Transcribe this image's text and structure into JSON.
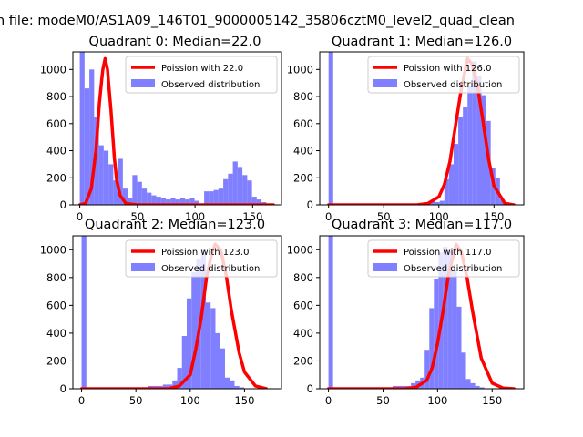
{
  "figure": {
    "suptitle": "n file: modeM0/AS1A09_146T01_9000005142_35806cztM0_level2_quad_clean"
  },
  "colors": {
    "poisson_line": "#ff0000",
    "histogram": "#7f7fff"
  },
  "chart_data": [
    {
      "type": "bar",
      "title": "Quadrant 0: Median=22.0",
      "median": 22.0,
      "xlim": [
        -6,
        175
      ],
      "ylim": [
        0,
        1130
      ],
      "xticks": [
        0,
        50,
        100,
        150
      ],
      "yticks": [
        0,
        200,
        400,
        600,
        800,
        1000
      ],
      "legend": {
        "line_label": "Poission with 22.0",
        "hist_label": "Observed distribution",
        "location": "upper-right"
      },
      "hist_bin_width": 4.15,
      "hist_start": 0,
      "hist_values": [
        1130,
        860,
        1000,
        650,
        440,
        400,
        300,
        180,
        340,
        120,
        50,
        220,
        170,
        120,
        90,
        70,
        60,
        50,
        40,
        50,
        40,
        50,
        40,
        50,
        30,
        10,
        100,
        100,
        110,
        120,
        190,
        230,
        320,
        280,
        220,
        180,
        60,
        40,
        20,
        10,
        0
      ],
      "poisson_x": [
        0,
        5,
        10,
        14,
        17,
        19,
        20,
        22,
        24,
        25,
        27,
        30,
        32,
        35,
        40,
        50,
        60,
        80,
        100,
        120,
        140,
        160,
        168
      ],
      "poisson_y": [
        0,
        10,
        120,
        400,
        750,
        920,
        1000,
        1080,
        1000,
        900,
        700,
        350,
        180,
        70,
        10,
        0,
        0,
        0,
        0,
        0,
        0,
        0,
        0
      ]
    },
    {
      "type": "bar",
      "title": "Quadrant 1: Median=126.0",
      "median": 126.0,
      "xlim": [
        -8,
        177
      ],
      "ylim": [
        0,
        1130
      ],
      "xticks": [
        0,
        50,
        100,
        150
      ],
      "yticks": [
        0,
        200,
        400,
        600,
        800,
        1000
      ],
      "legend": {
        "line_label": "Poission with 126.0",
        "hist_label": "Observed distribution",
        "location": "upper-right"
      },
      "hist_bin_width": 4.2,
      "hist_start": 0,
      "hist_values": [
        1130,
        0,
        0,
        0,
        0,
        0,
        0,
        0,
        0,
        0,
        0,
        0,
        0,
        0,
        0,
        0,
        0,
        0,
        0,
        0,
        10,
        20,
        30,
        20,
        30,
        190,
        300,
        450,
        650,
        720,
        880,
        1060,
        950,
        810,
        620,
        270,
        200,
        40,
        20,
        10,
        0
      ],
      "poisson_x": [
        0,
        80,
        90,
        100,
        105,
        110,
        115,
        120,
        126,
        130,
        135,
        140,
        145,
        150,
        160,
        168
      ],
      "poisson_y": [
        0,
        0,
        10,
        60,
        150,
        320,
        580,
        840,
        1080,
        1040,
        880,
        620,
        340,
        140,
        10,
        0
      ]
    },
    {
      "type": "bar",
      "title": "Quadrant 2: Median=123.0",
      "median": 123.0,
      "xlim": [
        -8,
        184
      ],
      "ylim": [
        0,
        1100
      ],
      "xticks": [
        0,
        50,
        100,
        150
      ],
      "yticks": [
        0,
        200,
        400,
        600,
        800,
        1000
      ],
      "legend": {
        "line_label": "Poission with 123.0",
        "hist_label": "Observed distribution",
        "location": "upper-right"
      },
      "hist_bin_width": 4.4,
      "hist_start": 0,
      "hist_values": [
        1100,
        0,
        0,
        0,
        0,
        0,
        0,
        0,
        0,
        0,
        0,
        0,
        0,
        0,
        20,
        20,
        20,
        30,
        30,
        60,
        150,
        380,
        650,
        840,
        930,
        1000,
        620,
        580,
        400,
        290,
        80,
        60,
        20,
        10,
        0
      ],
      "poisson_x": [
        0,
        80,
        90,
        100,
        105,
        110,
        115,
        120,
        123,
        128,
        133,
        138,
        145,
        150,
        160,
        170
      ],
      "poisson_y": [
        0,
        0,
        20,
        100,
        280,
        500,
        800,
        980,
        1040,
        1000,
        820,
        560,
        260,
        120,
        20,
        0
      ]
    },
    {
      "type": "bar",
      "title": "Quadrant 3: Median=117.0",
      "median": 117.0,
      "xlim": [
        -8,
        179
      ],
      "ylim": [
        0,
        1100
      ],
      "xticks": [
        0,
        50,
        100,
        150
      ],
      "yticks": [
        0,
        200,
        400,
        600,
        800,
        1000
      ],
      "legend": {
        "line_label": "Poission with 117.0",
        "hist_label": "Observed distribution",
        "location": "upper-right"
      },
      "hist_bin_width": 4.2,
      "hist_start": 0,
      "hist_values": [
        1100,
        0,
        0,
        0,
        0,
        0,
        0,
        0,
        0,
        0,
        0,
        0,
        0,
        0,
        20,
        20,
        20,
        20,
        40,
        60,
        80,
        280,
        580,
        790,
        980,
        1020,
        1000,
        850,
        590,
        260,
        70,
        40,
        20,
        10,
        0
      ],
      "poisson_x": [
        0,
        70,
        80,
        90,
        95,
        100,
        105,
        110,
        117,
        122,
        127,
        132,
        140,
        150,
        160,
        170
      ],
      "poisson_y": [
        0,
        0,
        10,
        60,
        150,
        330,
        560,
        820,
        1040,
        980,
        800,
        560,
        220,
        40,
        5,
        0
      ]
    }
  ]
}
